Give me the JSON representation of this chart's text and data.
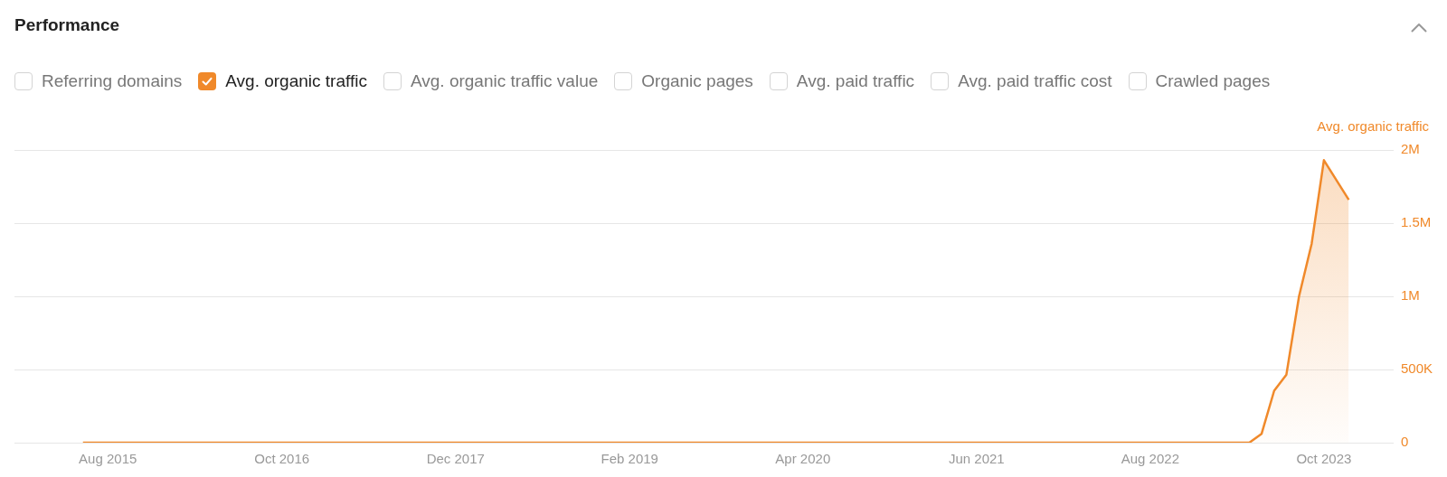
{
  "chart_data": {
    "type": "area",
    "title": "Performance",
    "ylabel": "Avg. organic traffic",
    "annotations": [
      "Referring domains",
      "Avg. organic traffic value",
      "Organic pages",
      "Avg. paid traffic",
      "Avg. paid traffic cost",
      "Crawled pages"
    ],
    "x": [
      "2015-06",
      "2023-04",
      "2023-05",
      "2023-06",
      "2023-07",
      "2023-08",
      "2023-09",
      "2023-10",
      "2023-12"
    ],
    "series": [
      {
        "name": "Avg. organic traffic",
        "color": "#f0892a",
        "values": [
          0,
          0,
          60000,
          355000,
          465000,
          1000000,
          1360000,
          1930000,
          1660000
        ]
      }
    ],
    "xlim": [
      "2014-12-15",
      "2024-03-20"
    ],
    "xticks": [
      {
        "value": "2015-08",
        "label": "Aug 2015"
      },
      {
        "value": "2016-10",
        "label": "Oct 2016"
      },
      {
        "value": "2017-12",
        "label": "Dec 2017"
      },
      {
        "value": "2019-02",
        "label": "Feb 2019"
      },
      {
        "value": "2020-04",
        "label": "Apr 2020"
      },
      {
        "value": "2021-06",
        "label": "Jun 2021"
      },
      {
        "value": "2022-08",
        "label": "Aug 2022"
      },
      {
        "value": "2023-10",
        "label": "Oct 2023"
      }
    ],
    "ylim": [
      0,
      2000000
    ],
    "yticks": [
      0,
      {
        "value": 500000,
        "label": "500K"
      },
      {
        "value": 1000000,
        "label": "1M"
      },
      {
        "value": 1500000,
        "label": "1.5M"
      },
      {
        "value": 2000000,
        "label": "2M"
      }
    ],
    "grid": "y",
    "legend": "top left",
    "marker": "none",
    "line_style": "solid"
  }
}
